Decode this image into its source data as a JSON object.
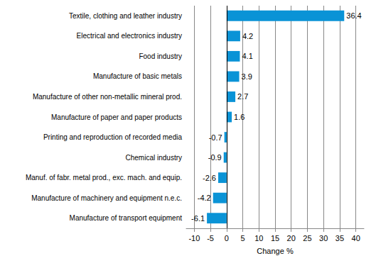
{
  "chart_data": {
    "type": "bar",
    "orientation": "horizontal",
    "categories": [
      "Textile, clothing and leather industry",
      "Electrical and electronics industry",
      "Food industry",
      "Manufacture of basic metals",
      "Manufacture of other non-metallic mineral prod.",
      "Manufacture of paper and paper products",
      "Printing and reproduction of recorded media",
      "Chemical industry",
      "Manuf. of fabr. metal prod., exc. mach. and equip.",
      "Manufacture of machinery and equipment n.e.c.",
      "Manufacture of transport equipment"
    ],
    "values": [
      36.4,
      4.2,
      4.1,
      3.9,
      2.7,
      1.6,
      -0.7,
      -0.9,
      -2.6,
      -4.2,
      -6.1
    ],
    "color": "#0a93d6",
    "xlabel": "Change %",
    "xlim": [
      -12.5,
      42.5
    ],
    "xticks": [
      -10,
      -5,
      0,
      5,
      10,
      15,
      20,
      25,
      30,
      35,
      40
    ],
    "grid": true,
    "data_labels": true
  }
}
